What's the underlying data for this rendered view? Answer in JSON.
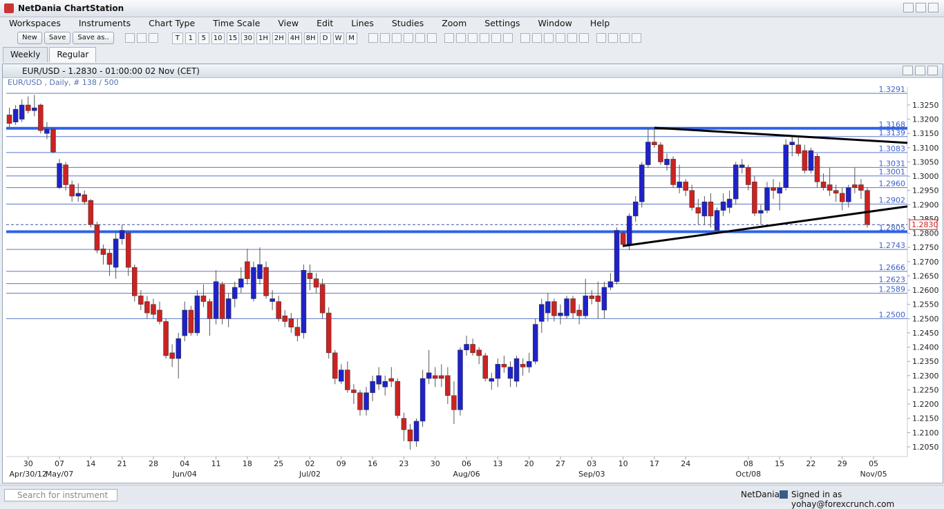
{
  "app": {
    "title": "NetDania ChartStation",
    "menus": [
      "Workspaces",
      "Instruments",
      "Chart Type",
      "Time Scale",
      "View",
      "Edit",
      "Lines",
      "Studies",
      "Zoom",
      "Settings",
      "Window",
      "Help"
    ],
    "toolbar": [
      "New",
      "Save",
      "Save as.."
    ],
    "timeframes": [
      "T",
      "1",
      "5",
      "10",
      "15",
      "30",
      "1H",
      "2H",
      "4H",
      "8H",
      "D",
      "W",
      "M"
    ],
    "tabs": [
      "Weekly",
      "Regular"
    ],
    "window_title": "EUR/USD - 1.2830 - 01:00:00  02 Nov (CET)",
    "info": "EUR/USD , Daily, # 138 / 500",
    "search": "Search for instrument",
    "status_brand": "NetDania",
    "status_user": "Signed in as yohay@forexcrunch.com"
  },
  "chart_data": {
    "type": "candlestick",
    "up_color": "#1f22c8",
    "down_color": "#cc2222",
    "open": [
      1.3215,
      1.319,
      1.32,
      1.325,
      1.323,
      1.325,
      1.315,
      1.3165,
      1.296,
      1.304,
      1.297,
      1.293,
      1.2935,
      1.2915,
      1.283,
      1.2745,
      1.273,
      1.268,
      1.278,
      1.28,
      1.268,
      1.258,
      1.256,
      1.255,
      1.253,
      1.249,
      1.238,
      1.236,
      1.244,
      1.253,
      1.245,
      1.258,
      1.256,
      1.25,
      1.262,
      1.25,
      1.257,
      1.261,
      1.27,
      1.257,
      1.264,
      1.268,
      1.256,
      1.256,
      1.251,
      1.25,
      1.247,
      1.245,
      1.266,
      1.264,
      1.262,
      1.252,
      1.238,
      1.228,
      1.232,
      1.225,
      1.224,
      1.218,
      1.224,
      1.227,
      1.226,
      1.229,
      1.228,
      1.215,
      1.211,
      1.207,
      1.214,
      1.229,
      1.23,
      1.23,
      1.23,
      1.223,
      1.218,
      1.239,
      1.241,
      1.239,
      1.237,
      1.228,
      1.229,
      1.234,
      1.229,
      1.228,
      1.234,
      1.233,
      1.235,
      1.249,
      1.252,
      1.256,
      1.251,
      1.251,
      1.257,
      1.253,
      1.251,
      1.258,
      1.258,
      1.253,
      1.261,
      1.263,
      1.28,
      1.276,
      1.286,
      1.291,
      1.304,
      1.312,
      1.311,
      1.304,
      1.306,
      1.296,
      1.298,
      1.295,
      1.289,
      1.286,
      1.291,
      1.281,
      1.288,
      1.289,
      1.292,
      1.303,
      1.303,
      1.298,
      1.287,
      1.288,
      1.296,
      1.294,
      1.296,
      1.311,
      1.311,
      1.309,
      1.302,
      1.307,
      1.298,
      1.297,
      1.295,
      1.294,
      1.291,
      1.297,
      1.297,
      1.295
    ],
    "high": [
      1.324,
      1.325,
      1.327,
      1.328,
      1.3285,
      1.3255,
      1.319,
      1.317,
      1.306,
      1.305,
      1.2985,
      1.2975,
      1.295,
      1.292,
      1.284,
      1.276,
      1.2745,
      1.28,
      1.283,
      1.281,
      1.269,
      1.26,
      1.258,
      1.257,
      1.256,
      1.25,
      1.241,
      1.245,
      1.256,
      1.2545,
      1.26,
      1.262,
      1.257,
      1.267,
      1.263,
      1.259,
      1.263,
      1.268,
      1.2745,
      1.27,
      1.275,
      1.27,
      1.26,
      1.258,
      1.253,
      1.252,
      1.25,
      1.269,
      1.269,
      1.266,
      1.264,
      1.254,
      1.239,
      1.234,
      1.235,
      1.227,
      1.225,
      1.226,
      1.23,
      1.233,
      1.23,
      1.233,
      1.229,
      1.217,
      1.213,
      1.215,
      1.232,
      1.239,
      1.233,
      1.234,
      1.233,
      1.228,
      1.24,
      1.244,
      1.243,
      1.24,
      1.238,
      1.231,
      1.236,
      1.237,
      1.235,
      1.237,
      1.236,
      1.238,
      1.25,
      1.257,
      1.259,
      1.257,
      1.255,
      1.258,
      1.258,
      1.255,
      1.264,
      1.26,
      1.263,
      1.263,
      1.266,
      1.282,
      1.281,
      1.287,
      1.293,
      1.305,
      1.317,
      1.317,
      1.312,
      1.308,
      1.307,
      1.304,
      1.299,
      1.297,
      1.292,
      1.293,
      1.294,
      1.289,
      1.294,
      1.295,
      1.305,
      1.306,
      1.304,
      1.3,
      1.29,
      1.298,
      1.299,
      1.298,
      1.313,
      1.314,
      1.314,
      1.311,
      1.31,
      1.308,
      1.301,
      1.303,
      1.297,
      1.296,
      1.297,
      1.303,
      1.299,
      1.296
    ],
    "low": [
      1.317,
      1.318,
      1.319,
      1.322,
      1.321,
      1.315,
      1.313,
      1.308,
      1.2955,
      1.295,
      1.291,
      1.291,
      1.29,
      1.282,
      1.273,
      1.269,
      1.265,
      1.264,
      1.276,
      1.265,
      1.256,
      1.253,
      1.25,
      1.25,
      1.248,
      1.236,
      1.233,
      1.229,
      1.242,
      1.244,
      1.244,
      1.254,
      1.244,
      1.248,
      1.248,
      1.247,
      1.254,
      1.259,
      1.262,
      1.256,
      1.262,
      1.257,
      1.253,
      1.249,
      1.247,
      1.245,
      1.242,
      1.243,
      1.26,
      1.259,
      1.25,
      1.236,
      1.227,
      1.227,
      1.224,
      1.22,
      1.216,
      1.216,
      1.221,
      1.225,
      1.223,
      1.226,
      1.215,
      1.207,
      1.204,
      1.205,
      1.212,
      1.227,
      1.226,
      1.226,
      1.22,
      1.213,
      1.216,
      1.237,
      1.237,
      1.234,
      1.228,
      1.225,
      1.226,
      1.231,
      1.226,
      1.226,
      1.23,
      1.231,
      1.234,
      1.245,
      1.249,
      1.249,
      1.248,
      1.25,
      1.25,
      1.248,
      1.25,
      1.255,
      1.25,
      1.25,
      1.26,
      1.262,
      1.275,
      1.274,
      1.284,
      1.289,
      1.303,
      1.31,
      1.304,
      1.302,
      1.296,
      1.294,
      1.293,
      1.288,
      1.283,
      1.283,
      1.282,
      1.28,
      1.286,
      1.287,
      1.29,
      1.301,
      1.295,
      1.286,
      1.283,
      1.287,
      1.292,
      1.288,
      1.295,
      1.307,
      1.307,
      1.301,
      1.301,
      1.296,
      1.295,
      1.293,
      1.291,
      1.288,
      1.289,
      1.294,
      1.292,
      1.282
    ],
    "close": [
      1.3185,
      1.3235,
      1.325,
      1.323,
      1.324,
      1.316,
      1.3165,
      1.3085,
      1.3045,
      1.297,
      1.293,
      1.294,
      1.291,
      1.283,
      1.274,
      1.2725,
      1.269,
      1.278,
      1.281,
      1.268,
      1.258,
      1.255,
      1.252,
      1.2515,
      1.249,
      1.237,
      1.236,
      1.243,
      1.253,
      1.245,
      1.258,
      1.256,
      1.25,
      1.263,
      1.25,
      1.257,
      1.261,
      1.264,
      1.264,
      1.268,
      1.269,
      1.258,
      1.257,
      1.25,
      1.249,
      1.247,
      1.244,
      1.267,
      1.264,
      1.261,
      1.252,
      1.238,
      1.229,
      1.232,
      1.225,
      1.224,
      1.218,
      1.224,
      1.228,
      1.23,
      1.228,
      1.228,
      1.216,
      1.211,
      1.207,
      1.214,
      1.229,
      1.231,
      1.229,
      1.229,
      1.223,
      1.218,
      1.239,
      1.241,
      1.238,
      1.237,
      1.229,
      1.229,
      1.234,
      1.233,
      1.233,
      1.236,
      1.233,
      1.235,
      1.248,
      1.255,
      1.256,
      1.251,
      1.252,
      1.257,
      1.252,
      1.251,
      1.258,
      1.257,
      1.256,
      1.261,
      1.263,
      1.281,
      1.276,
      1.286,
      1.291,
      1.304,
      1.312,
      1.311,
      1.305,
      1.306,
      1.297,
      1.298,
      1.295,
      1.289,
      1.287,
      1.291,
      1.286,
      1.288,
      1.291,
      1.292,
      1.304,
      1.304,
      1.297,
      1.287,
      1.288,
      1.296,
      1.295,
      1.296,
      1.311,
      1.312,
      1.308,
      1.302,
      1.309,
      1.298,
      1.296,
      1.295,
      1.294,
      1.291,
      1.296,
      1.296,
      1.295,
      1.283
    ],
    "xlim": [
      -0.5,
      143.4
    ],
    "ylim": [
      1.2016,
      1.3313
    ],
    "xticks": [
      {
        "value": 3,
        "label": "30"
      },
      {
        "value": 8,
        "label": "07"
      },
      {
        "value": 13,
        "label": "14"
      },
      {
        "value": 18,
        "label": "21"
      },
      {
        "value": 23,
        "label": "28"
      },
      {
        "value": 28,
        "label": "04"
      },
      {
        "value": 33,
        "label": "11"
      },
      {
        "value": 38,
        "label": "18"
      },
      {
        "value": 43,
        "label": "25"
      },
      {
        "value": 48,
        "label": "02"
      },
      {
        "value": 53,
        "label": "09"
      },
      {
        "value": 58,
        "label": "16"
      },
      {
        "value": 63,
        "label": "23"
      },
      {
        "value": 68,
        "label": "30"
      },
      {
        "value": 73,
        "label": "06"
      },
      {
        "value": 78,
        "label": "13"
      },
      {
        "value": 83,
        "label": "20"
      },
      {
        "value": 88,
        "label": "27"
      },
      {
        "value": 93,
        "label": "03"
      },
      {
        "value": 98,
        "label": "10"
      },
      {
        "value": 103,
        "label": "17"
      },
      {
        "value": 108,
        "label": "24"
      },
      {
        "value": 118,
        "label": "08"
      },
      {
        "value": 123,
        "label": "15"
      },
      {
        "value": 128,
        "label": "22"
      },
      {
        "value": 133,
        "label": "29"
      },
      {
        "value": 138,
        "label": "05"
      }
    ],
    "period_labels": [
      {
        "value": 3,
        "label": "Apr/30/12"
      },
      {
        "value": 8,
        "label": "May/07"
      },
      {
        "value": 28,
        "label": "Jun/04"
      },
      {
        "value": 48,
        "label": "Jul/02"
      },
      {
        "value": 73,
        "label": "Aug/06"
      },
      {
        "value": 93,
        "label": "Sep/03"
      },
      {
        "value": 118,
        "label": "Oct/08"
      },
      {
        "value": 138,
        "label": "Nov/05"
      }
    ],
    "yticks": [
      {
        "value": 1.205,
        "label": "1.2050"
      },
      {
        "value": 1.21,
        "label": "1.2100"
      },
      {
        "value": 1.215,
        "label": "1.2150"
      },
      {
        "value": 1.22,
        "label": "1.2200"
      },
      {
        "value": 1.225,
        "label": "1.2250"
      },
      {
        "value": 1.23,
        "label": "1.2300"
      },
      {
        "value": 1.235,
        "label": "1.2350"
      },
      {
        "value": 1.24,
        "label": "1.2400"
      },
      {
        "value": 1.245,
        "label": "1.2450"
      },
      {
        "value": 1.25,
        "label": "1.2500"
      },
      {
        "value": 1.255,
        "label": "1.2550"
      },
      {
        "value": 1.26,
        "label": "1.2600"
      },
      {
        "value": 1.265,
        "label": "1.2650"
      },
      {
        "value": 1.27,
        "label": "1.2700"
      },
      {
        "value": 1.275,
        "label": "1.2750"
      },
      {
        "value": 1.28,
        "label": "1.2800"
      },
      {
        "value": 1.285,
        "label": "1.2850"
      },
      {
        "value": 1.29,
        "label": "1.2900"
      },
      {
        "value": 1.295,
        "label": "1.2950"
      },
      {
        "value": 1.3,
        "label": "1.3000"
      },
      {
        "value": 1.305,
        "label": "1.3050"
      },
      {
        "value": 1.31,
        "label": "1.3100"
      },
      {
        "value": 1.315,
        "label": "1.3150"
      },
      {
        "value": 1.32,
        "label": "1.3200"
      },
      {
        "value": 1.325,
        "label": "1.3250"
      }
    ],
    "levels": [
      {
        "value": 1.3291
      },
      {
        "value": 1.3168,
        "thick": true
      },
      {
        "value": 1.3139
      },
      {
        "value": 1.3083
      },
      {
        "value": 1.3031
      },
      {
        "value": 1.3001
      },
      {
        "value": 1.296,
        "label": "1.2960"
      },
      {
        "value": 1.2902
      },
      {
        "value": 1.2805,
        "thick": true
      },
      {
        "value": 1.2743
      },
      {
        "value": 1.2666
      },
      {
        "value": 1.2623
      },
      {
        "value": 1.2589
      },
      {
        "value": 1.25,
        "label": "1.2500"
      }
    ],
    "last": {
      "value": 1.283,
      "label": "1.2830"
    },
    "trendlines": [
      {
        "x": [
          103,
          143.4
        ],
        "y": [
          1.317,
          1.3117
        ]
      },
      {
        "x": [
          98,
          143.4
        ],
        "y": [
          1.2755,
          1.2894
        ]
      }
    ]
  }
}
